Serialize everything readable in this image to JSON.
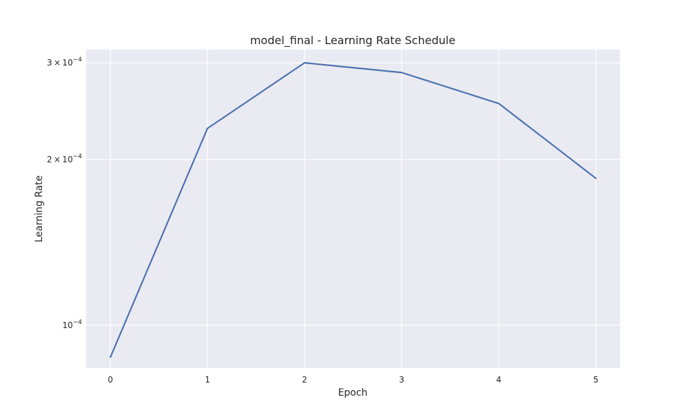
{
  "chart_data": {
    "type": "line",
    "title": "model_final - Learning Rate Schedule",
    "xlabel": "Epoch",
    "ylabel": "Learning Rate",
    "yscale": "log",
    "grid": true,
    "legend": "none",
    "x": [
      0,
      1,
      2,
      3,
      4,
      5
    ],
    "series": [
      {
        "values": [
          8.75e-05,
          0.000228,
          0.0003,
          0.000288,
          0.000253,
          0.000185
        ],
        "color": "#4c72b0"
      }
    ],
    "xlim": [
      -0.25,
      5.25
    ],
    "ylim": [
      8.36e-05,
      0.000317
    ],
    "xticks": [
      0,
      1,
      2,
      3,
      4,
      5
    ],
    "yticks": [
      {
        "value": 0.0003,
        "mantissa": "3",
        "exponent": "−4"
      },
      {
        "value": 0.0002,
        "mantissa": "2",
        "exponent": "−4"
      },
      {
        "value": 0.0001,
        "mantissa": "",
        "exponent": "−4"
      }
    ],
    "colors": {
      "plot_background": "#eaeaf2",
      "grid": "#ffffff",
      "line": "#4c72b0"
    }
  }
}
